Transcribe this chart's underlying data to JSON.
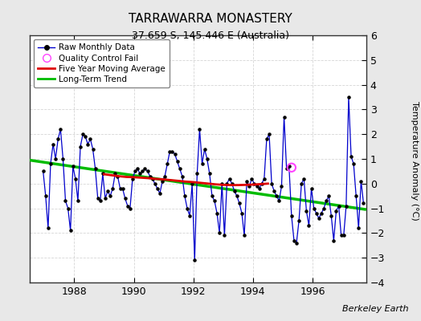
{
  "title": "TARRAWARRA MONASTERY",
  "subtitle": "37.659 S, 145.446 E (Australia)",
  "ylabel": "Temperature Anomaly (°C)",
  "credit": "Berkeley Earth",
  "xlim": [
    1986.5,
    1997.8
  ],
  "ylim": [
    -4,
    6
  ],
  "yticks": [
    -4,
    -3,
    -2,
    -1,
    0,
    1,
    2,
    3,
    4,
    5,
    6
  ],
  "xticks": [
    1988,
    1990,
    1992,
    1994,
    1996
  ],
  "background_color": "#e8e8e8",
  "plot_background": "#ffffff",
  "raw_x": [
    1986.958,
    1987.042,
    1987.125,
    1987.208,
    1987.292,
    1987.375,
    1987.458,
    1987.542,
    1987.625,
    1987.708,
    1987.792,
    1987.875,
    1987.958,
    1988.042,
    1988.125,
    1988.208,
    1988.292,
    1988.375,
    1988.458,
    1988.542,
    1988.625,
    1988.708,
    1988.792,
    1988.875,
    1988.958,
    1989.042,
    1989.125,
    1989.208,
    1989.292,
    1989.375,
    1989.458,
    1989.542,
    1989.625,
    1989.708,
    1989.792,
    1989.875,
    1989.958,
    1990.042,
    1990.125,
    1990.208,
    1990.292,
    1990.375,
    1990.458,
    1990.542,
    1990.625,
    1990.708,
    1990.792,
    1990.875,
    1990.958,
    1991.042,
    1991.125,
    1991.208,
    1991.292,
    1991.375,
    1991.458,
    1991.542,
    1991.625,
    1991.708,
    1991.792,
    1991.875,
    1991.958,
    1992.042,
    1992.125,
    1992.208,
    1992.292,
    1992.375,
    1992.458,
    1992.542,
    1992.625,
    1992.708,
    1992.792,
    1992.875,
    1992.958,
    1993.042,
    1993.125,
    1993.208,
    1993.292,
    1993.375,
    1993.458,
    1993.542,
    1993.625,
    1993.708,
    1993.792,
    1993.875,
    1993.958,
    1994.042,
    1994.125,
    1994.208,
    1994.292,
    1994.375,
    1994.458,
    1994.542,
    1994.625,
    1994.708,
    1994.792,
    1994.875,
    1994.958,
    1995.042,
    1995.125,
    1995.208,
    1995.292,
    1995.375,
    1995.458,
    1995.542,
    1995.625,
    1995.708,
    1995.792,
    1995.875,
    1995.958,
    1996.042,
    1996.125,
    1996.208,
    1996.292,
    1996.375,
    1996.458,
    1996.542,
    1996.625,
    1996.708,
    1996.792,
    1996.875,
    1996.958,
    1997.042,
    1997.125,
    1997.208,
    1997.292,
    1997.375,
    1997.458,
    1997.542,
    1997.625,
    1997.708
  ],
  "raw_y": [
    0.5,
    -0.5,
    -1.8,
    0.8,
    1.6,
    1.0,
    1.8,
    2.2,
    1.0,
    -0.7,
    -1.0,
    -1.9,
    0.7,
    0.2,
    -0.7,
    1.5,
    2.0,
    1.9,
    1.6,
    1.8,
    1.4,
    0.6,
    -0.6,
    -0.7,
    0.4,
    -0.6,
    -0.3,
    -0.5,
    -0.2,
    0.4,
    0.3,
    -0.2,
    -0.2,
    -0.6,
    -0.9,
    -1.0,
    0.2,
    0.5,
    0.6,
    0.4,
    0.5,
    0.6,
    0.5,
    0.3,
    0.2,
    0.0,
    -0.2,
    -0.4,
    0.1,
    0.3,
    0.8,
    1.3,
    1.3,
    1.2,
    0.9,
    0.6,
    0.3,
    -0.5,
    -1.0,
    -1.3,
    0.0,
    -3.1,
    0.4,
    2.2,
    0.8,
    1.4,
    1.0,
    0.4,
    -0.5,
    -0.7,
    -1.2,
    -2.0,
    0.0,
    -2.1,
    0.0,
    0.2,
    0.0,
    -0.3,
    -0.5,
    -0.8,
    -1.2,
    -2.1,
    0.1,
    -0.1,
    0.2,
    0.0,
    -0.1,
    -0.2,
    0.0,
    0.2,
    1.8,
    2.0,
    0.0,
    -0.3,
    -0.5,
    -0.7,
    -0.1,
    2.7,
    0.6,
    0.7,
    -1.3,
    -2.3,
    -2.4,
    -1.5,
    0.0,
    0.2,
    -1.1,
    -1.7,
    -0.2,
    -1.0,
    -1.2,
    -1.4,
    -1.2,
    -1.0,
    -0.7,
    -0.5,
    -1.3,
    -2.3,
    -1.1,
    -0.9,
    -2.1,
    -2.1,
    -0.9,
    3.5,
    1.1,
    0.8,
    -0.5,
    -1.8,
    0.1,
    -0.8
  ],
  "qc_fail_x": [
    1995.292
  ],
  "qc_fail_y": [
    0.65
  ],
  "moving_avg_x": [
    1989.0,
    1989.25,
    1989.5,
    1989.75,
    1990.0,
    1990.25,
    1990.5,
    1990.75,
    1991.0,
    1991.25,
    1991.5,
    1991.75,
    1992.0,
    1992.25,
    1992.5,
    1992.75,
    1993.0,
    1993.25,
    1993.5,
    1993.75,
    1994.0,
    1994.25,
    1994.5
  ],
  "moving_avg_y": [
    0.38,
    0.34,
    0.3,
    0.27,
    0.26,
    0.24,
    0.22,
    0.19,
    0.17,
    0.14,
    0.11,
    0.08,
    0.06,
    0.03,
    0.0,
    -0.03,
    -0.05,
    -0.06,
    -0.06,
    -0.05,
    -0.04,
    -0.02,
    0.0
  ],
  "trend_x": [
    1986.5,
    1997.8
  ],
  "trend_y": [
    0.95,
    -1.05
  ],
  "line_color": "#0000cc",
  "marker_color": "#000000",
  "moving_avg_color": "#dd0000",
  "trend_color": "#00bb00",
  "qc_color": "#ff44ff",
  "grid_color": "#cccccc",
  "spine_color": "#333333"
}
